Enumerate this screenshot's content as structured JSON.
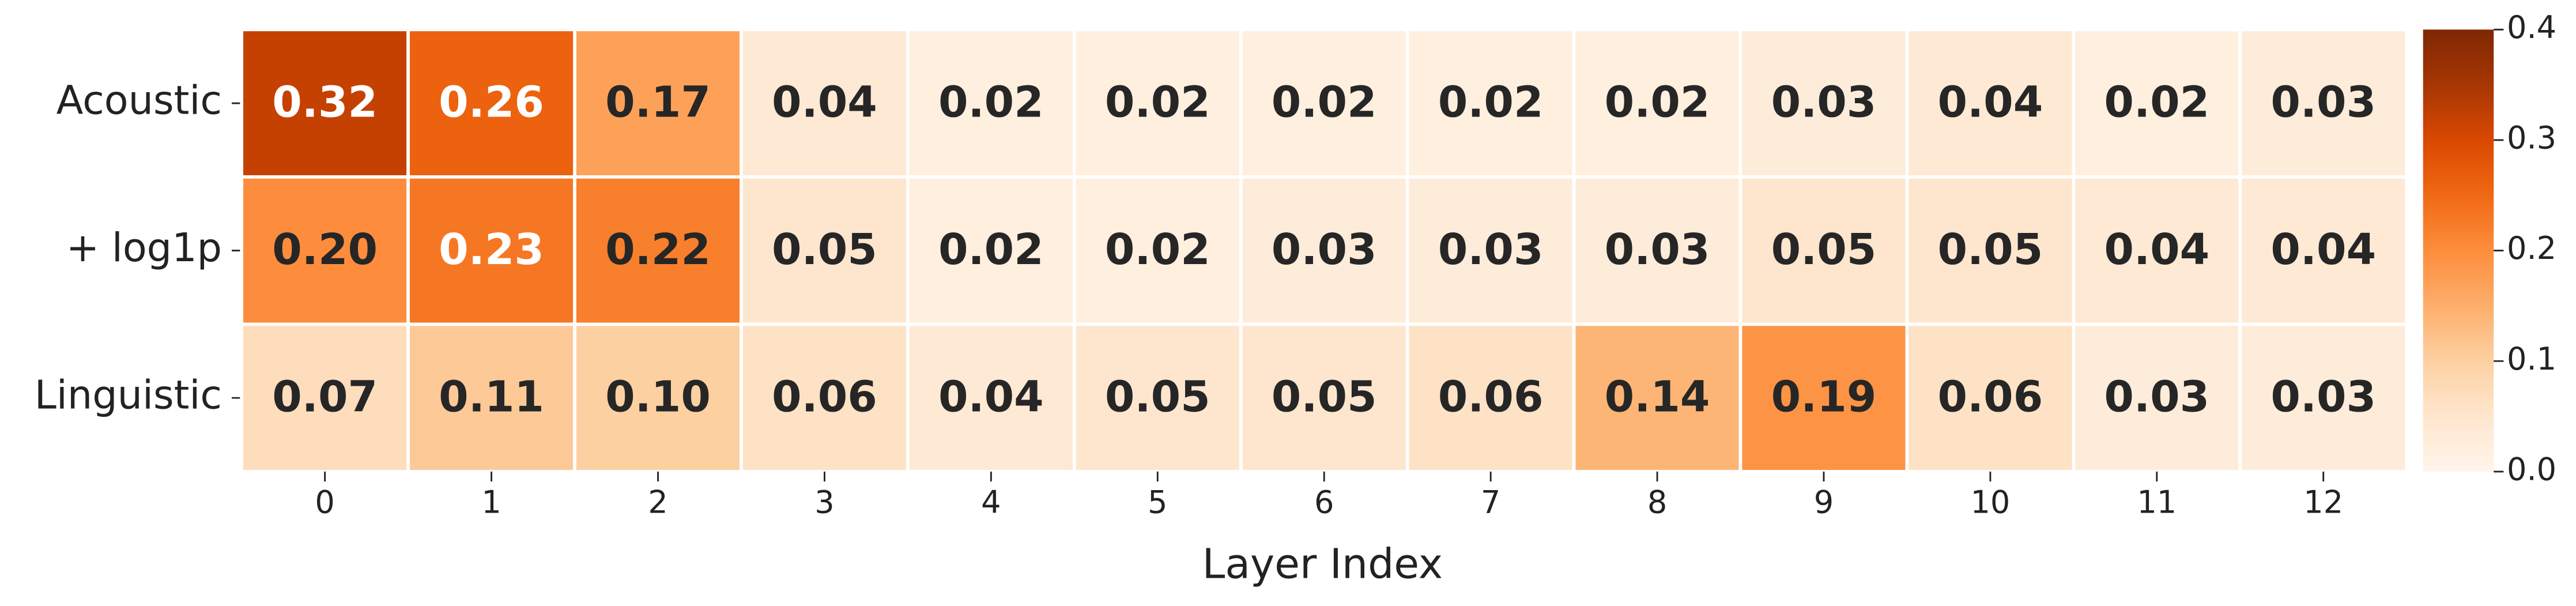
{
  "chart_data": {
    "type": "heatmap",
    "rows": [
      "Acoustic",
      "+ log1p",
      "Linguistic"
    ],
    "categories": [
      "0",
      "1",
      "2",
      "3",
      "4",
      "5",
      "6",
      "7",
      "8",
      "9",
      "10",
      "11",
      "12"
    ],
    "values": [
      [
        0.32,
        0.26,
        0.17,
        0.04,
        0.02,
        0.02,
        0.02,
        0.02,
        0.02,
        0.03,
        0.04,
        0.02,
        0.03
      ],
      [
        0.2,
        0.23,
        0.22,
        0.05,
        0.02,
        0.02,
        0.03,
        0.03,
        0.03,
        0.05,
        0.05,
        0.04,
        0.04
      ],
      [
        0.07,
        0.11,
        0.1,
        0.06,
        0.04,
        0.05,
        0.05,
        0.06,
        0.14,
        0.19,
        0.06,
        0.03,
        0.03
      ]
    ],
    "value_labels": [
      [
        "0.32",
        "0.26",
        "0.17",
        "0.04",
        "0.02",
        "0.02",
        "0.02",
        "0.02",
        "0.02",
        "0.03",
        "0.04",
        "0.02",
        "0.03"
      ],
      [
        "0.20",
        "0.23",
        "0.22",
        "0.05",
        "0.02",
        "0.02",
        "0.03",
        "0.03",
        "0.03",
        "0.05",
        "0.05",
        "0.04",
        "0.04"
      ],
      [
        "0.07",
        "0.11",
        "0.10",
        "0.06",
        "0.04",
        "0.05",
        "0.05",
        "0.06",
        "0.14",
        "0.19",
        "0.06",
        "0.03",
        "0.03"
      ]
    ],
    "xlabel": "Layer Index",
    "clim": [
      0,
      0.4
    ],
    "cticks": [
      {
        "value": 0,
        "label": "0.0"
      },
      0.1,
      0.2,
      0.3,
      0.4
    ]
  }
}
